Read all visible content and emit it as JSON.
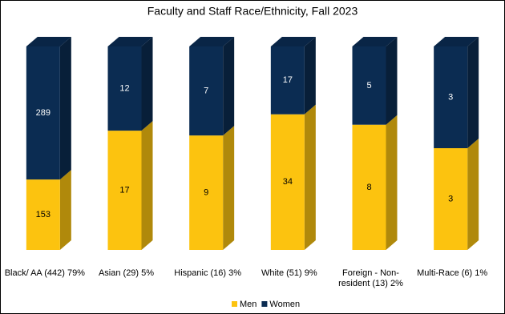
{
  "chart_data": {
    "type": "bar",
    "stacking": "percent",
    "depth3d": true,
    "title": "Faculty and Staff Race/Ethnicity, Fall 2023",
    "categories": [
      "Black/ AA (442) 79%",
      "Asian (29) 5%",
      "Hispanic (16) 3%",
      "White (51) 9%",
      "Foreign - Non-resident (13) 2%",
      "Multi-Race (6) 1%"
    ],
    "series": [
      {
        "name": "Men",
        "color": "#fcc30f",
        "values": [
          153,
          17,
          9,
          34,
          8,
          3
        ]
      },
      {
        "name": "Women",
        "color": "#0b2c52",
        "values": [
          289,
          12,
          7,
          17,
          5,
          3
        ]
      }
    ],
    "legend": "bottom"
  }
}
